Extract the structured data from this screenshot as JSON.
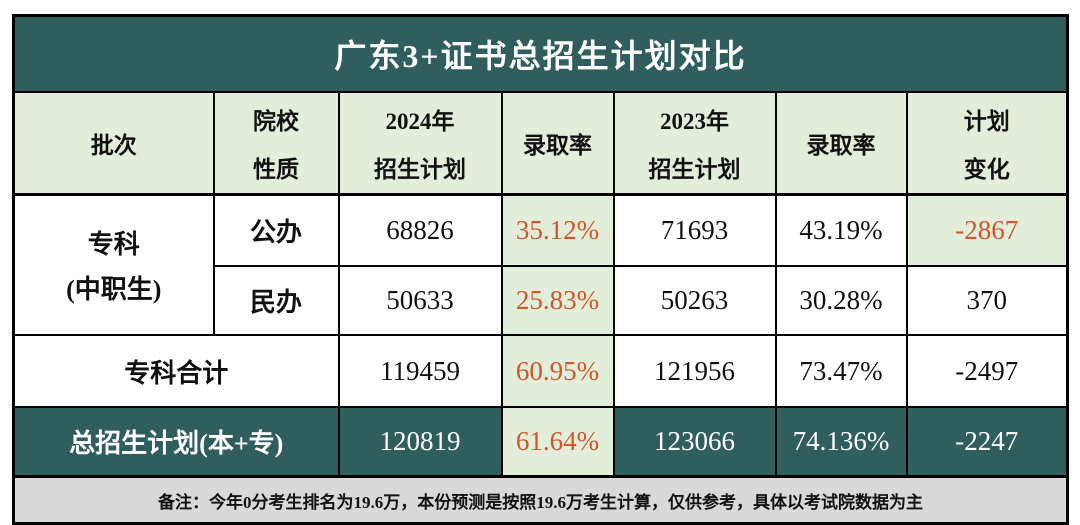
{
  "title": "广东3+证书总招生计划对比",
  "colors": {
    "teal": "#305E5D",
    "light_green": "#E3EEDA",
    "orange_accent": "#D0552A",
    "footer_gray": "#D9D9D9",
    "border": "#000000"
  },
  "header": {
    "batch": "批次",
    "nature_l1": "院校",
    "nature_l2": "性质",
    "plan2024_l1": "2024年",
    "plan2024_l2": "招生计划",
    "rate2024": "录取率",
    "plan2023_l1": "2023年",
    "plan2023_l2": "招生计划",
    "rate2023": "录取率",
    "change_l1": "计划",
    "change_l2": "变化"
  },
  "body": {
    "batch_l1": "专科",
    "batch_l2": "(中职生)",
    "public": {
      "nature": "公办",
      "plan2024": "68826",
      "rate2024": "35.12%",
      "plan2023": "71693",
      "rate2023": "43.19%",
      "change": "-2867"
    },
    "private": {
      "nature": "民办",
      "plan2024": "50633",
      "rate2024": "25.83%",
      "plan2023": "50263",
      "rate2023": "30.28%",
      "change": "370"
    },
    "subtotal": {
      "label": "专科合计",
      "plan2024": "119459",
      "rate2024": "60.95%",
      "plan2023": "121956",
      "rate2023": "73.47%",
      "change": "-2497"
    },
    "total": {
      "label": "总招生计划(本+专)",
      "plan2024": "120819",
      "rate2024": "61.64%",
      "plan2023": "123066",
      "rate2023": "74.136%",
      "change": "-2247"
    }
  },
  "footnote": "备注：今年0分考生排名为19.6万，本份预测是按照19.6万考生计算，仅供参考，具体以考试院数据为主",
  "chart_data": {
    "type": "table",
    "title": "广东3+证书总招生计划对比",
    "columns": [
      "批次",
      "院校性质",
      "2024年招生计划",
      "录取率",
      "2023年招生计划",
      "录取率",
      "计划变化"
    ],
    "rows": [
      [
        "专科(中职生)",
        "公办",
        68826,
        "35.12%",
        71693,
        "43.19%",
        -2867
      ],
      [
        "专科(中职生)",
        "民办",
        50633,
        "25.83%",
        50263,
        "30.28%",
        370
      ],
      [
        "专科合计",
        "",
        119459,
        "60.95%",
        121956,
        "73.47%",
        -2497
      ],
      [
        "总招生计划(本+专)",
        "",
        120819,
        "61.64%",
        123066,
        "74.136%",
        -2247
      ]
    ],
    "footnote": "备注：今年0分考生排名为19.6万，本份预测是按照19.6万考生计算，仅供参考，具体以考试院数据为主",
    "highlight": "录取率2024与部分计划变化单元格为浅绿底橙字；标题行与总计行为深青底白字"
  }
}
